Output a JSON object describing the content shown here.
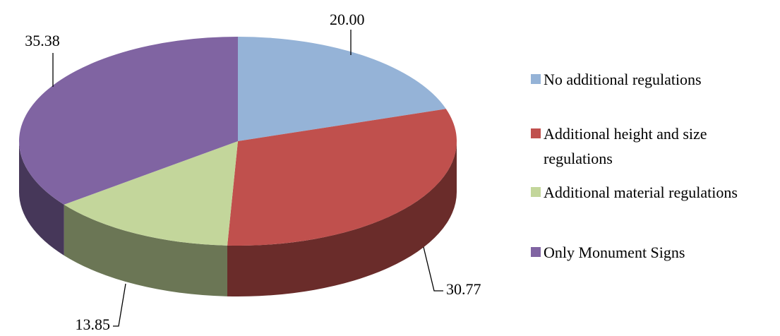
{
  "chart_data": {
    "type": "pie",
    "categories": [
      "No additional regulations",
      "Additional height and size regulations",
      "Additional material regulations",
      "Only Monument Signs"
    ],
    "values": [
      20.0,
      30.77,
      13.85,
      35.38
    ],
    "value_labels": [
      "20.00",
      "30.77",
      "13.85",
      "35.38"
    ],
    "colors": [
      "#95b3d7",
      "#c0504d",
      "#c3d69b",
      "#8064a2"
    ],
    "legend": "right"
  }
}
